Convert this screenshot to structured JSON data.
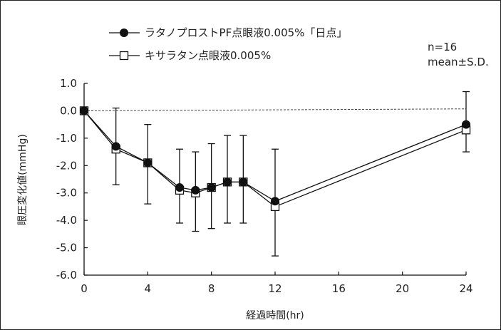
{
  "chart_data": {
    "type": "line",
    "title": "",
    "xlabel": "経過時間(hr)",
    "ylabel": "眼圧変化値(mmHg)",
    "xlim": [
      0,
      24
    ],
    "ylim": [
      -6.0,
      1.0
    ],
    "x_ticks": [
      "0",
      "4",
      "8",
      "12",
      "16",
      "20",
      "24"
    ],
    "y_ticks": [
      "1.0",
      "0.0",
      "-1.0",
      "-2.0",
      "-3.0",
      "-4.0",
      "-5.0",
      "-6.0"
    ],
    "grid": false,
    "legend_position": "top-left",
    "reference_line": {
      "y": 0,
      "style": "dashed"
    },
    "annotation": {
      "n": "n=16",
      "stat": "mean±S.D."
    },
    "series": [
      {
        "name": "ラタノプロストPF点眼液0.005%「日点」",
        "marker": "filled-circle",
        "x": [
          0,
          2,
          4,
          6,
          7,
          8,
          9,
          10,
          12,
          24
        ],
        "y": [
          0.0,
          -1.3,
          -1.9,
          -2.8,
          -2.9,
          -2.8,
          -2.6,
          -2.6,
          -3.3,
          -0.5
        ],
        "err_upper": [
          0.0,
          0.1,
          -0.5,
          -1.4,
          -1.5,
          -1.2,
          -0.9,
          -0.9,
          -1.4,
          0.7
        ],
        "err_lower": [
          0.0,
          -2.7,
          -3.4,
          -4.1,
          -4.4,
          -4.3,
          -4.1,
          -4.1,
          -5.3,
          -1.5
        ]
      },
      {
        "name": "キサラタン点眼液0.005%",
        "marker": "open-square",
        "x": [
          0,
          2,
          4,
          6,
          7,
          8,
          9,
          10,
          12,
          24
        ],
        "y": [
          0.0,
          -1.4,
          -1.9,
          -2.9,
          -3.0,
          -2.8,
          -2.6,
          -2.6,
          -3.5,
          -0.7
        ]
      }
    ]
  }
}
